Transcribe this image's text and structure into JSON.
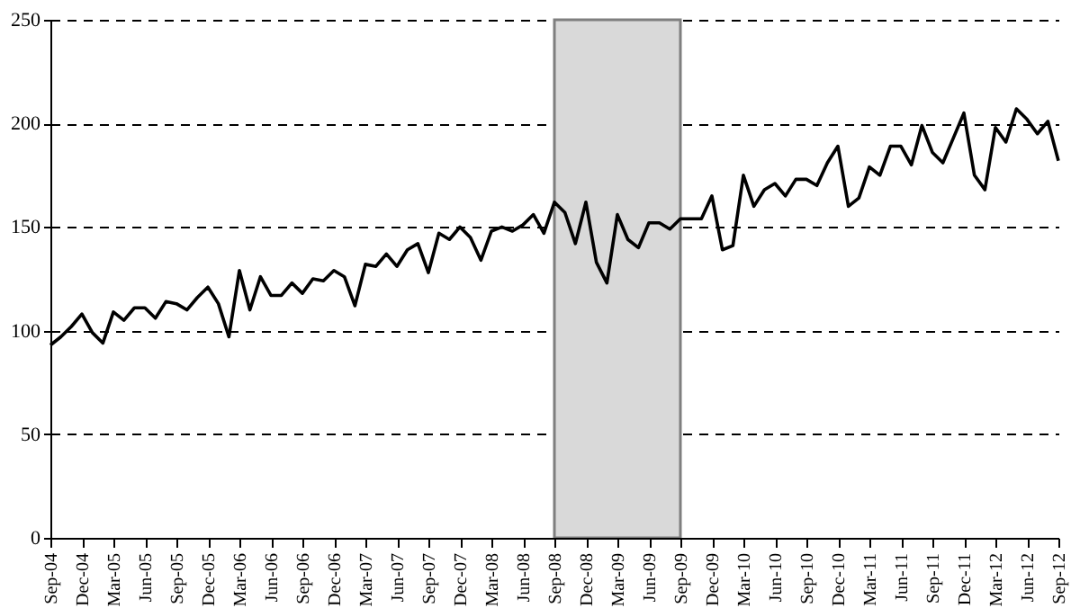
{
  "chart_data": {
    "type": "line",
    "categories": [
      "Sep-04",
      null,
      null,
      "Dec-04",
      null,
      null,
      "Mar-05",
      null,
      null,
      "Jun-05",
      null,
      null,
      "Sep-05",
      null,
      null,
      "Dec-05",
      null,
      null,
      "Mar-06",
      null,
      null,
      "Jun-06",
      null,
      null,
      "Sep-06",
      null,
      null,
      "Dec-06",
      null,
      null,
      "Mar-07",
      null,
      null,
      "Jun-07",
      null,
      null,
      "Sep-07",
      null,
      null,
      "Dec-07",
      null,
      null,
      "Mar-08",
      null,
      null,
      "Jun-08",
      null,
      null,
      "Sep-08",
      null,
      null,
      "Dec-08",
      null,
      null,
      "Mar-09",
      null,
      null,
      "Jun-09",
      null,
      null,
      "Sep-09",
      null,
      null,
      "Dec-09",
      null,
      null,
      "Mar-10",
      null,
      null,
      "Jun-10",
      null,
      null,
      "Sep-10",
      null,
      null,
      "Dec-10",
      null,
      null,
      "Mar-11",
      null,
      null,
      "Jun-11",
      null,
      null,
      "Sep-11",
      null,
      null,
      "Dec-11",
      null,
      null,
      "Mar-12",
      null,
      null,
      "Jun-12",
      null,
      null,
      "Sep-12"
    ],
    "series": [
      {
        "color": "#000000",
        "values": [
          93,
          97,
          102,
          108,
          99,
          94,
          109,
          105,
          111,
          111,
          106,
          114,
          113,
          110,
          116,
          121,
          113,
          97,
          129,
          110,
          126,
          117,
          117,
          123,
          118,
          125,
          124,
          129,
          126,
          112,
          132,
          131,
          137,
          131,
          139,
          142,
          128,
          147,
          144,
          150,
          145,
          134,
          148,
          150,
          148,
          151,
          156,
          147,
          162,
          157,
          142,
          162,
          133,
          123,
          156,
          144,
          140,
          152,
          152,
          149,
          154,
          154,
          154,
          165,
          139,
          141,
          175,
          160,
          168,
          171,
          165,
          173,
          173,
          170,
          181,
          189,
          160,
          164,
          179,
          175,
          189,
          189,
          180,
          199,
          186,
          181,
          193,
          205,
          175,
          168,
          198,
          191,
          207,
          202,
          195,
          201,
          182
        ]
      }
    ],
    "ylim": [
      0,
      250
    ],
    "yticks": [
      0,
      50,
      100,
      150,
      200,
      250
    ],
    "grid": "y",
    "line_style": "solid",
    "bands": [
      {
        "axis": "x",
        "from": "Sep-08",
        "to": "Sep-09",
        "color": "#d9d9d9"
      }
    ]
  }
}
